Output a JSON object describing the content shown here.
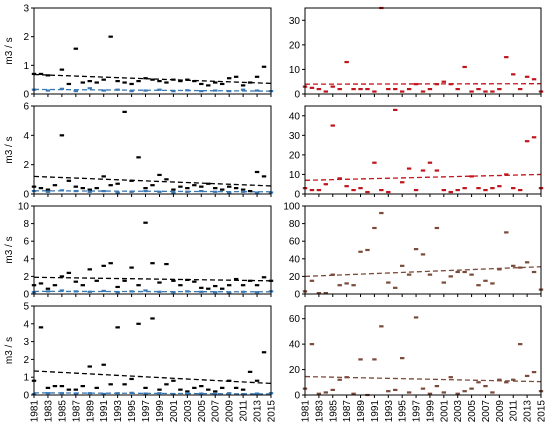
{
  "years": [
    "1981",
    "1983",
    "1985",
    "1987",
    "1989",
    "1991",
    "1993",
    "1995",
    "1997",
    "1999",
    "2001",
    "2003",
    "2005",
    "2007",
    "2009",
    "2011",
    "2013",
    "2015"
  ],
  "ylabel": "m3 / s",
  "colors": {
    "black": "#000000",
    "blue": "#3a78b4",
    "red": "#c0141c",
    "brown": "#7a4a3a",
    "frame": "#000000"
  },
  "chart_data": [
    {
      "type": "scatter",
      "panel": "left-1",
      "ylim": [
        0,
        3
      ],
      "yticks": [
        0,
        1,
        2,
        3
      ],
      "ylabel": "m3 / s",
      "series": [
        {
          "role": "points",
          "color": "#000000",
          "x": [
            1981,
            1982,
            1983,
            1985,
            1986,
            1987,
            1988,
            1989,
            1990,
            1991,
            1992,
            1993,
            1994,
            1995,
            1996,
            1997,
            1998,
            1999,
            2000,
            2001,
            2002,
            2003,
            2004,
            2005,
            2006,
            2007,
            2008,
            2009,
            2010,
            2011,
            2012,
            2013,
            2014
          ],
          "y": [
            0.7,
            0.7,
            0.65,
            0.85,
            0.35,
            1.58,
            0.4,
            0.45,
            0.4,
            0.5,
            2.0,
            0.45,
            0.4,
            0.35,
            0.45,
            0.55,
            0.5,
            0.45,
            0.4,
            0.5,
            0.45,
            0.5,
            0.45,
            0.35,
            0.3,
            0.4,
            0.35,
            0.55,
            0.6,
            0.3,
            0.4,
            0.6,
            0.95
          ]
        },
        {
          "role": "trend",
          "color": "#000000",
          "x": [
            1981,
            2015
          ],
          "y": [
            0.68,
            0.37
          ]
        },
        {
          "role": "points",
          "color": "#3a78b4",
          "x": [
            1981,
            1983,
            1985,
            1987,
            1989,
            1991,
            1993,
            1995,
            1997,
            1999,
            2001,
            2003,
            2005,
            2007,
            2009,
            2011,
            2013,
            2015
          ],
          "y": [
            0.15,
            0.12,
            0.18,
            0.1,
            0.2,
            0.12,
            0.15,
            0.1,
            0.12,
            0.15,
            0.1,
            0.13,
            0.1,
            0.12,
            0.1,
            0.15,
            0.12,
            0.1
          ]
        },
        {
          "role": "trend",
          "color": "#3a78b4",
          "x": [
            1981,
            2015
          ],
          "y": [
            0.16,
            0.1
          ]
        }
      ]
    },
    {
      "type": "scatter",
      "panel": "right-1",
      "ylim": [
        0,
        35
      ],
      "yticks": [
        0,
        10,
        20,
        30
      ],
      "series": [
        {
          "role": "points",
          "color": "#c0141c",
          "x": [
            1981,
            1982,
            1983,
            1984,
            1985,
            1986,
            1987,
            1988,
            1989,
            1990,
            1991,
            1992,
            1993,
            1994,
            1995,
            1996,
            1997,
            1998,
            1999,
            2000,
            2001,
            2002,
            2003,
            2004,
            2005,
            2006,
            2007,
            2008,
            2009,
            2010,
            2011,
            2012,
            2013,
            2014,
            2015
          ],
          "y": [
            3,
            2.5,
            2,
            1,
            3,
            2,
            13,
            2,
            2,
            2,
            1,
            35,
            2,
            2,
            1,
            2,
            4,
            1,
            2,
            4,
            5,
            4,
            2,
            11,
            1,
            2,
            1,
            1,
            2,
            15,
            8,
            2,
            7,
            6,
            1
          ]
        },
        {
          "role": "trend",
          "color": "#c0141c",
          "x": [
            1981,
            2015
          ],
          "y": [
            4,
            4.2
          ]
        }
      ]
    },
    {
      "type": "scatter",
      "panel": "left-2",
      "ylim": [
        0,
        6
      ],
      "yticks": [
        0,
        2,
        4,
        6
      ],
      "ylabel": "m3 / s",
      "series": [
        {
          "role": "points",
          "color": "#000000",
          "x": [
            1981,
            1982,
            1983,
            1984,
            1985,
            1986,
            1987,
            1988,
            1989,
            1990,
            1991,
            1992,
            1993,
            1994,
            1995,
            1996,
            1997,
            1998,
            1999,
            2000,
            2001,
            2002,
            2003,
            2004,
            2005,
            2006,
            2007,
            2008,
            2009,
            2010,
            2011,
            2012,
            2013,
            2014
          ],
          "y": [
            0.5,
            0.4,
            0.3,
            0.6,
            4.0,
            0.9,
            0.5,
            0.4,
            0.3,
            0.4,
            1.2,
            0.6,
            0.7,
            5.6,
            0.9,
            2.5,
            0.4,
            0.6,
            1.3,
            1.0,
            0.3,
            0.5,
            0.4,
            0.6,
            0.5,
            0.7,
            0.4,
            0.3,
            0.5,
            0.4,
            0.3,
            0.2,
            1.5,
            1.2
          ]
        },
        {
          "role": "trend",
          "color": "#000000",
          "x": [
            1981,
            2015
          ],
          "y": [
            1.2,
            0.55
          ]
        },
        {
          "role": "points",
          "color": "#3a78b4",
          "x": [
            1981,
            1983,
            1985,
            1987,
            1989,
            1991,
            1993,
            1995,
            1997,
            1999,
            2001,
            2003,
            2005,
            2007,
            2009,
            2011,
            2013,
            2015
          ],
          "y": [
            0.2,
            0.15,
            0.25,
            0.2,
            0.15,
            0.2,
            0.1,
            0.15,
            0.2,
            0.15,
            0.1,
            0.15,
            0.2,
            0.15,
            0.1,
            0.15,
            0.1,
            0.1
          ]
        },
        {
          "role": "trend",
          "color": "#3a78b4",
          "x": [
            1981,
            2015
          ],
          "y": [
            0.22,
            0.15
          ]
        }
      ]
    },
    {
      "type": "scatter",
      "panel": "right-2",
      "ylim": [
        0,
        45
      ],
      "yticks": [
        0,
        10,
        20,
        30,
        40
      ],
      "series": [
        {
          "role": "points",
          "color": "#c0141c",
          "x": [
            1981,
            1982,
            1983,
            1984,
            1985,
            1986,
            1987,
            1988,
            1989,
            1990,
            1991,
            1992,
            1993,
            1994,
            1995,
            1996,
            1997,
            1998,
            1999,
            2000,
            2001,
            2002,
            2003,
            2004,
            2005,
            2006,
            2007,
            2008,
            2009,
            2010,
            2011,
            2012,
            2013,
            2014,
            2015
          ],
          "y": [
            3,
            2,
            2,
            5,
            35,
            8,
            4,
            2,
            3,
            1,
            16,
            2,
            1,
            43,
            6,
            13,
            2,
            12,
            16,
            12,
            2,
            1,
            2,
            3,
            9,
            3,
            2,
            3,
            4,
            10,
            3,
            2,
            27,
            29,
            3
          ]
        },
        {
          "role": "trend",
          "color": "#c0141c",
          "x": [
            1981,
            2015
          ],
          "y": [
            7,
            10
          ]
        }
      ]
    },
    {
      "type": "scatter",
      "panel": "left-3",
      "ylim": [
        0,
        10
      ],
      "yticks": [
        0,
        2,
        4,
        6,
        8,
        10
      ],
      "ylabel": "m3 / s",
      "series": [
        {
          "role": "points",
          "color": "#000000",
          "x": [
            1981,
            1982,
            1983,
            1984,
            1985,
            1986,
            1987,
            1988,
            1989,
            1990,
            1991,
            1992,
            1993,
            1994,
            1995,
            1996,
            1997,
            1998,
            1999,
            2000,
            2001,
            2002,
            2003,
            2004,
            2005,
            2006,
            2007,
            2008,
            2009,
            2010,
            2011,
            2012,
            2013,
            2014,
            2015
          ],
          "y": [
            1.0,
            1.2,
            0.6,
            1.0,
            2.0,
            2.4,
            1.4,
            1.0,
            2.8,
            1.5,
            3.2,
            3.5,
            0.8,
            1.5,
            3.0,
            1.0,
            8.1,
            3.5,
            1.3,
            3.4,
            1.5,
            1.0,
            1.6,
            1.4,
            0.7,
            0.6,
            0.9,
            0.6,
            1.0,
            1.7,
            1.0,
            1.5,
            1.0,
            1.9,
            1.5
          ]
        },
        {
          "role": "trend",
          "color": "#000000",
          "x": [
            1981,
            2015
          ],
          "y": [
            1.9,
            1.5
          ]
        },
        {
          "role": "points",
          "color": "#3a78b4",
          "x": [
            1981,
            1983,
            1985,
            1987,
            1989,
            1991,
            1993,
            1995,
            1997,
            1999,
            2001,
            2003,
            2005,
            2007,
            2009,
            2011,
            2013,
            2015
          ],
          "y": [
            0.2,
            0.3,
            0.4,
            0.3,
            0.25,
            0.35,
            0.2,
            0.3,
            0.4,
            0.25,
            0.2,
            0.3,
            0.25,
            0.2,
            0.15,
            0.25,
            0.2,
            0.3
          ]
        },
        {
          "role": "trend",
          "color": "#3a78b4",
          "x": [
            1981,
            2015
          ],
          "y": [
            0.3,
            0.25
          ]
        }
      ]
    },
    {
      "type": "scatter",
      "panel": "right-3",
      "ylim": [
        0,
        100
      ],
      "yticks": [
        0,
        20,
        40,
        60,
        80,
        100
      ],
      "series": [
        {
          "role": "points",
          "color": "#7a4a3a",
          "x": [
            1981,
            1982,
            1983,
            1984,
            1985,
            1986,
            1987,
            1988,
            1989,
            1990,
            1991,
            1992,
            1993,
            1994,
            1995,
            1996,
            1997,
            1998,
            1999,
            2000,
            2001,
            2002,
            2003,
            2004,
            2005,
            2006,
            2007,
            2008,
            2009,
            2010,
            2011,
            2012,
            2013,
            2014,
            2015
          ],
          "y": [
            3,
            15,
            1,
            1,
            22,
            10,
            12,
            10,
            48,
            50,
            75,
            92,
            13,
            7,
            32,
            22,
            51,
            45,
            22,
            75,
            13,
            20,
            25,
            25,
            22,
            10,
            15,
            12,
            28,
            70,
            32,
            30,
            36,
            25,
            5
          ]
        },
        {
          "role": "trend",
          "color": "#7a4a3a",
          "x": [
            1981,
            2015
          ],
          "y": [
            20,
            31
          ]
        }
      ]
    },
    {
      "type": "scatter",
      "panel": "left-4",
      "ylim": [
        0,
        5
      ],
      "yticks": [
        0,
        1,
        2,
        3,
        4,
        5
      ],
      "ylabel": "m3 / s",
      "series": [
        {
          "role": "points",
          "color": "#000000",
          "x": [
            1981,
            1982,
            1983,
            1984,
            1985,
            1986,
            1987,
            1988,
            1989,
            1990,
            1991,
            1992,
            1993,
            1994,
            1995,
            1996,
            1997,
            1998,
            1999,
            2000,
            2001,
            2002,
            2003,
            2004,
            2005,
            2006,
            2007,
            2008,
            2009,
            2010,
            2011,
            2012,
            2013,
            2014
          ],
          "y": [
            0.8,
            3.8,
            0.4,
            0.5,
            0.5,
            0.3,
            0.3,
            0.5,
            1.6,
            0.4,
            1.7,
            0.6,
            3.8,
            0.6,
            0.9,
            4.0,
            0.4,
            4.3,
            0.3,
            0.6,
            0.8,
            0.3,
            0.2,
            0.4,
            0.5,
            0.3,
            0.2,
            0.4,
            0.8,
            0.4,
            0.3,
            1.3,
            0.8,
            2.4
          ]
        },
        {
          "role": "trend",
          "color": "#000000",
          "x": [
            1981,
            2015
          ],
          "y": [
            1.35,
            0.65
          ]
        },
        {
          "role": "points",
          "color": "#3a78b4",
          "x": [
            1981,
            1983,
            1985,
            1987,
            1989,
            1991,
            1993,
            1995,
            1997,
            1999,
            2001,
            2003,
            2005,
            2007,
            2009,
            2011,
            2013,
            2015
          ],
          "y": [
            0.05,
            0.1,
            0.1,
            0.08,
            0.1,
            0.06,
            0.1,
            0.12,
            0.08,
            0.1,
            0.05,
            0.1,
            0.08,
            0.06,
            0.1,
            0.05,
            0.08,
            0.1
          ]
        },
        {
          "role": "trend",
          "color": "#3a78b4",
          "x": [
            1981,
            2015
          ],
          "y": [
            0.12,
            0.06
          ]
        }
      ]
    },
    {
      "type": "scatter",
      "panel": "right-4",
      "ylim": [
        0,
        70
      ],
      "yticks": [
        0,
        20,
        40,
        60
      ],
      "series": [
        {
          "role": "points",
          "color": "#7a4a3a",
          "x": [
            1981,
            1982,
            1983,
            1984,
            1985,
            1986,
            1987,
            1988,
            1989,
            1990,
            1991,
            1992,
            1993,
            1994,
            1995,
            1996,
            1997,
            1998,
            1999,
            2000,
            2001,
            2002,
            2003,
            2004,
            2005,
            2006,
            2007,
            2008,
            2009,
            2010,
            2011,
            2012,
            2013,
            2014,
            2015
          ],
          "y": [
            5,
            40,
            1,
            2,
            4,
            12,
            14,
            1,
            28,
            0,
            28,
            54,
            3,
            4,
            29,
            2,
            61,
            5,
            1,
            7,
            2,
            14,
            1,
            3,
            5,
            10,
            7,
            2,
            12,
            10,
            12,
            40,
            15,
            18,
            3
          ]
        },
        {
          "role": "trend",
          "color": "#7a4a3a",
          "x": [
            1981,
            2015
          ],
          "y": [
            14.5,
            10.5
          ]
        }
      ]
    }
  ]
}
